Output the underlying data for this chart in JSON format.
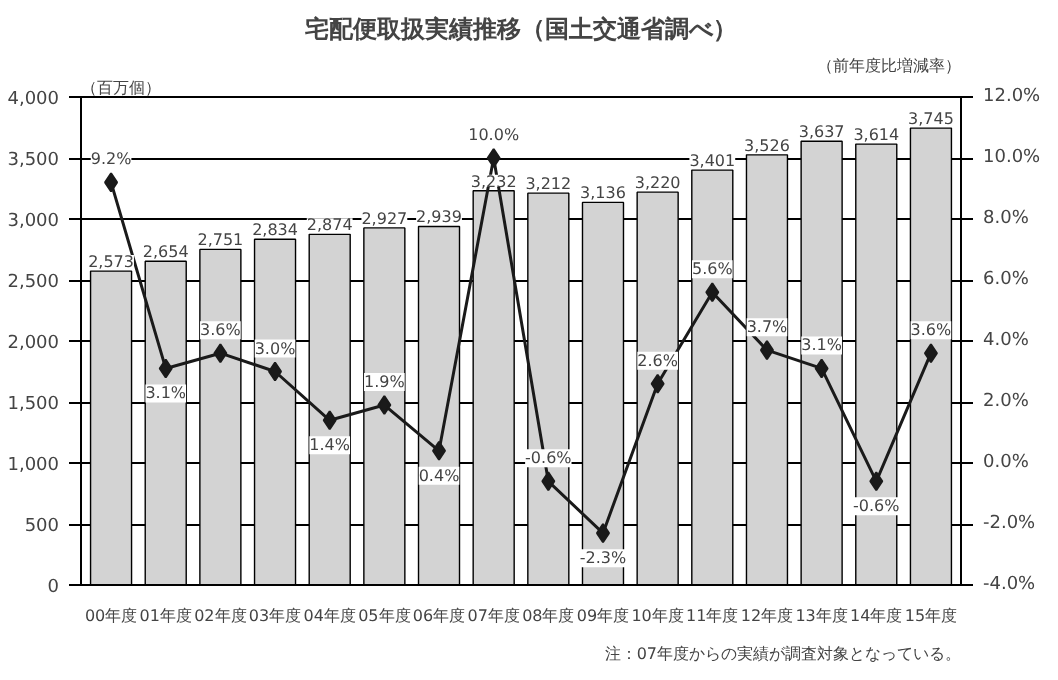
{
  "chart_data": {
    "type": "bar",
    "title": "宅配便取扱実績推移（国土交通省調べ）",
    "ylabel": "（百万個）",
    "y2label": "（前年度比増減率）",
    "categories": [
      "00年度",
      "01年度",
      "02年度",
      "03年度",
      "04年度",
      "05年度",
      "06年度",
      "07年度",
      "08年度",
      "09年度",
      "10年度",
      "11年度",
      "12年度",
      "13年度",
      "14年度",
      "15年度"
    ],
    "series": [
      {
        "color": "#d3d3d3",
        "values": [
          2573,
          2654,
          2751,
          2834,
          2874,
          2927,
          2939,
          3232,
          3212,
          3136,
          3220,
          3401,
          3526,
          3637,
          3614,
          3745
        ],
        "value_labels": [
          "2,573",
          "2,654",
          "2,751",
          "2,834",
          "2,874",
          "2,927",
          "2,939",
          "3,232",
          "3,212",
          "3,136",
          "3,220",
          "3,401",
          "3,526",
          "3,637",
          "3,614",
          "3,745"
        ]
      },
      {
        "type": "line",
        "axis": "y2",
        "color": "#1a1a1a",
        "marker": "diamond",
        "values": [
          9.2,
          3.1,
          3.6,
          3.0,
          1.4,
          1.9,
          0.4,
          10.0,
          -0.6,
          -2.3,
          2.6,
          5.6,
          3.7,
          3.1,
          -0.6,
          3.6
        ],
        "value_labels": [
          "9.2%",
          "3.1%",
          "3.6%",
          "3.0%",
          "1.4%",
          "1.9%",
          "0.4%",
          "10.0%",
          "-0.6%",
          "-2.3%",
          "2.6%",
          "5.6%",
          "3.7%",
          "3.1%",
          "-0.6%",
          "3.6%"
        ]
      }
    ],
    "ylim": [
      0,
      4000
    ],
    "yticks": [
      {
        "value": 0,
        "label": "0"
      },
      {
        "value": 500,
        "label": "500"
      },
      {
        "value": 1000,
        "label": "1,000"
      },
      {
        "value": 1500,
        "label": "1,500"
      },
      {
        "value": 2000,
        "label": "2,000"
      },
      {
        "value": 2500,
        "label": "2,500"
      },
      {
        "value": 3000,
        "label": "3,000"
      },
      {
        "value": 3500,
        "label": "3,500"
      },
      {
        "value": 4000,
        "label": "4,000"
      }
    ],
    "y2lim": [
      -4,
      12
    ],
    "y2ticks": [
      {
        "value": -4,
        "label": "-4.0%"
      },
      {
        "value": -2,
        "label": "-2.0%"
      },
      {
        "value": 0,
        "label": "0.0%"
      },
      {
        "value": 2,
        "label": "2.0%"
      },
      {
        "value": 4,
        "label": "4.0%"
      },
      {
        "value": 6,
        "label": "6.0%"
      },
      {
        "value": 8,
        "label": "8.0%"
      },
      {
        "value": 10,
        "label": "10.0%"
      },
      {
        "value": 12,
        "label": "12.0%"
      }
    ],
    "grid": "y",
    "annotations": [
      "注：07年度からの実績が調査対象となっている。"
    ]
  }
}
